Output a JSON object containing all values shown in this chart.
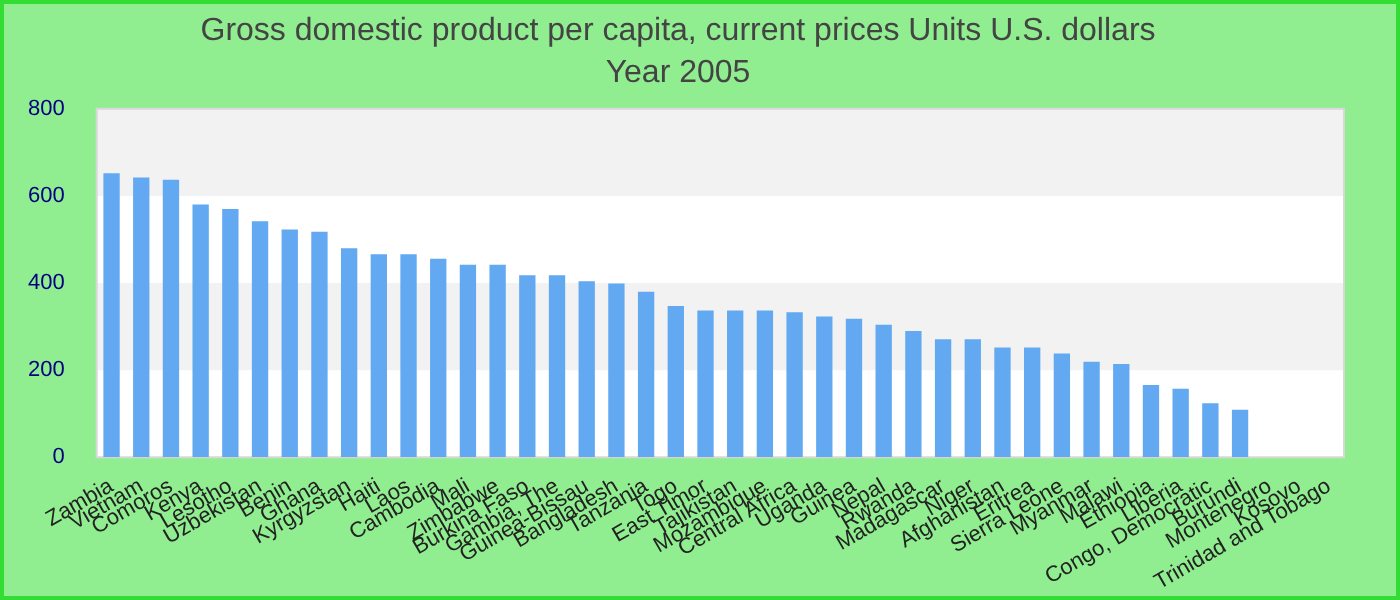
{
  "chart_data": {
    "type": "bar",
    "title": "Gross domestic product per capita, current prices Units U.S. dollars",
    "subtitle": "Year 2005",
    "categories": [
      "Zambia",
      "Vietnam",
      "Comoros",
      "Kenya",
      "Lesotho",
      "Uzbekistan",
      "Benin",
      "Ghana",
      "Kyrgyzstan",
      "Haiti",
      "Laos",
      "Cambodia",
      "Mali",
      "Zimbabwe",
      "Burkina Faso",
      "Gambia, The",
      "Guinea-Bissau",
      "Bangladesh",
      "Tanzania",
      "Togo",
      "East Timor",
      "Tajikistan",
      "Mozambique",
      "Central Africa",
      "Uganda",
      "Guinea",
      "Nepal",
      "Rwanda",
      "Madagascar",
      "Niger",
      "Afghanistan",
      "Eritrea",
      "Sierra Leone",
      "Myanmar",
      "Malawi",
      "Ethiopia",
      "Liberia",
      "Congo, Democratic",
      "Burundi",
      "Montenegro",
      "Kosovo",
      "Trinidad and Tobago"
    ],
    "values": [
      652,
      642,
      637,
      580,
      570,
      542,
      523,
      518,
      480,
      466,
      466,
      456,
      442,
      442,
      418,
      418,
      404,
      399,
      380,
      347,
      337,
      337,
      337,
      333,
      323,
      318,
      304,
      290,
      271,
      271,
      252,
      252,
      238,
      219,
      214,
      166,
      157,
      124,
      109,
      null,
      null,
      null
    ],
    "color": "#62a9f2",
    "ylim": [
      0,
      800
    ],
    "yticks": [
      0,
      200,
      400,
      600,
      800
    ]
  }
}
